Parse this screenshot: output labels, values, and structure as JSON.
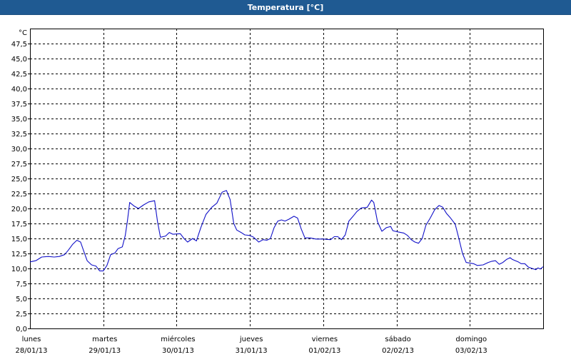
{
  "window": {
    "title": "Temperatura [°C]"
  },
  "colors": {
    "titlebar": "#1f5a92",
    "titlebar_text": "#ffffff",
    "series": "#1010c8",
    "grid": "#000000",
    "background": "#ffffff"
  },
  "chart_data": {
    "type": "line",
    "title": "Temperatura [°C]",
    "ylabel": "°C",
    "xlabel": "",
    "ylim": [
      0,
      50
    ],
    "yticks": [
      0,
      2.5,
      5,
      7.5,
      10,
      12.5,
      15,
      17.5,
      20,
      22.5,
      25,
      27.5,
      30,
      32.5,
      35,
      37.5,
      40,
      42.5,
      45,
      47.5
    ],
    "ytick_labels": [
      "0,0",
      "2,5",
      "5,0",
      "7,5",
      "10,0",
      "12,5",
      "15,0",
      "17,5",
      "20,0",
      "22,5",
      "25,0",
      "27,5",
      "30,0",
      "32,5",
      "35,0",
      "37,5",
      "40,0",
      "42,5",
      "45,0",
      "47,5"
    ],
    "xlim": [
      0,
      7
    ],
    "x_unit": "days",
    "x_categories": [
      {
        "day": "lunes",
        "date": "28/01/13"
      },
      {
        "day": "martes",
        "date": "29/01/13"
      },
      {
        "day": "miércoles",
        "date": "30/01/13"
      },
      {
        "day": "jueves",
        "date": "31/01/13"
      },
      {
        "day": "viernes",
        "date": "01/02/13"
      },
      {
        "day": "sábado",
        "date": "02/02/13"
      },
      {
        "day": "domingo",
        "date": "03/02/13"
      }
    ],
    "grid": true,
    "series": [
      {
        "values": [
          [
            0.0,
            11.1
          ],
          [
            0.08,
            11.3
          ],
          [
            0.16,
            11.9
          ],
          [
            0.25,
            12.0
          ],
          [
            0.33,
            11.9
          ],
          [
            0.4,
            12.0
          ],
          [
            0.47,
            12.3
          ],
          [
            0.52,
            13.0
          ],
          [
            0.58,
            14.0
          ],
          [
            0.64,
            14.7
          ],
          [
            0.69,
            14.4
          ],
          [
            0.73,
            13.0
          ],
          [
            0.78,
            11.3
          ],
          [
            0.84,
            10.6
          ],
          [
            0.9,
            10.4
          ],
          [
            0.95,
            9.6
          ],
          [
            1.0,
            9.6
          ],
          [
            1.05,
            10.5
          ],
          [
            1.1,
            12.3
          ],
          [
            1.16,
            12.6
          ],
          [
            1.2,
            13.3
          ],
          [
            1.26,
            13.6
          ],
          [
            1.3,
            15.5
          ],
          [
            1.33,
            18.0
          ],
          [
            1.36,
            21.0
          ],
          [
            1.42,
            20.4
          ],
          [
            1.48,
            20.0
          ],
          [
            1.55,
            20.6
          ],
          [
            1.62,
            21.1
          ],
          [
            1.7,
            21.3
          ],
          [
            1.74,
            17.8
          ],
          [
            1.78,
            15.2
          ],
          [
            1.85,
            15.4
          ],
          [
            1.9,
            16.0
          ],
          [
            1.95,
            15.7
          ],
          [
            2.05,
            15.8
          ],
          [
            2.1,
            15.0
          ],
          [
            2.15,
            14.4
          ],
          [
            2.22,
            15.0
          ],
          [
            2.27,
            14.6
          ],
          [
            2.33,
            16.8
          ],
          [
            2.4,
            19.0
          ],
          [
            2.48,
            20.2
          ],
          [
            2.55,
            20.9
          ],
          [
            2.62,
            22.7
          ],
          [
            2.68,
            23.0
          ],
          [
            2.73,
            21.5
          ],
          [
            2.78,
            17.5
          ],
          [
            2.82,
            16.4
          ],
          [
            2.88,
            16.0
          ],
          [
            2.93,
            15.6
          ],
          [
            3.0,
            15.5
          ],
          [
            3.05,
            15.2
          ],
          [
            3.12,
            14.4
          ],
          [
            3.18,
            14.8
          ],
          [
            3.23,
            14.7
          ],
          [
            3.28,
            15.0
          ],
          [
            3.33,
            16.8
          ],
          [
            3.38,
            17.9
          ],
          [
            3.43,
            18.1
          ],
          [
            3.48,
            17.9
          ],
          [
            3.53,
            18.2
          ],
          [
            3.6,
            18.7
          ],
          [
            3.65,
            18.4
          ],
          [
            3.7,
            16.6
          ],
          [
            3.75,
            15.1
          ],
          [
            3.82,
            15.1
          ],
          [
            3.9,
            14.9
          ],
          [
            4.0,
            14.9
          ],
          [
            4.1,
            14.8
          ],
          [
            4.15,
            15.3
          ],
          [
            4.2,
            15.3
          ],
          [
            4.25,
            14.8
          ],
          [
            4.3,
            15.6
          ],
          [
            4.35,
            17.9
          ],
          [
            4.4,
            18.6
          ],
          [
            4.46,
            19.5
          ],
          [
            4.52,
            20.1
          ],
          [
            4.6,
            20.2
          ],
          [
            4.66,
            21.4
          ],
          [
            4.69,
            21.0
          ],
          [
            4.74,
            17.8
          ],
          [
            4.8,
            16.2
          ],
          [
            4.86,
            16.8
          ],
          [
            4.92,
            17.0
          ],
          [
            4.95,
            16.3
          ],
          [
            5.02,
            16.1
          ],
          [
            5.1,
            15.9
          ],
          [
            5.15,
            15.5
          ],
          [
            5.2,
            14.8
          ],
          [
            5.25,
            14.4
          ],
          [
            5.3,
            14.2
          ],
          [
            5.35,
            15.0
          ],
          [
            5.4,
            17.2
          ],
          [
            5.46,
            18.4
          ],
          [
            5.52,
            19.8
          ],
          [
            5.58,
            20.5
          ],
          [
            5.63,
            20.2
          ],
          [
            5.68,
            19.2
          ],
          [
            5.73,
            18.5
          ],
          [
            5.8,
            17.4
          ],
          [
            5.85,
            15.0
          ],
          [
            5.9,
            12.5
          ],
          [
            5.95,
            11.0
          ],
          [
            6.0,
            10.9
          ],
          [
            6.05,
            10.8
          ],
          [
            6.1,
            10.5
          ],
          [
            6.18,
            10.6
          ],
          [
            6.25,
            11.0
          ],
          [
            6.3,
            11.2
          ],
          [
            6.35,
            11.3
          ],
          [
            6.4,
            10.7
          ],
          [
            6.45,
            11.0
          ],
          [
            6.5,
            11.5
          ],
          [
            6.55,
            11.8
          ],
          [
            6.58,
            11.5
          ],
          [
            6.62,
            11.3
          ],
          [
            6.66,
            11.1
          ],
          [
            6.7,
            10.8
          ],
          [
            6.75,
            10.8
          ],
          [
            6.8,
            10.2
          ],
          [
            6.85,
            10.0
          ],
          [
            6.9,
            9.8
          ],
          [
            6.93,
            10.1
          ],
          [
            6.96,
            9.9
          ],
          [
            7.0,
            10.3
          ]
        ]
      }
    ]
  }
}
